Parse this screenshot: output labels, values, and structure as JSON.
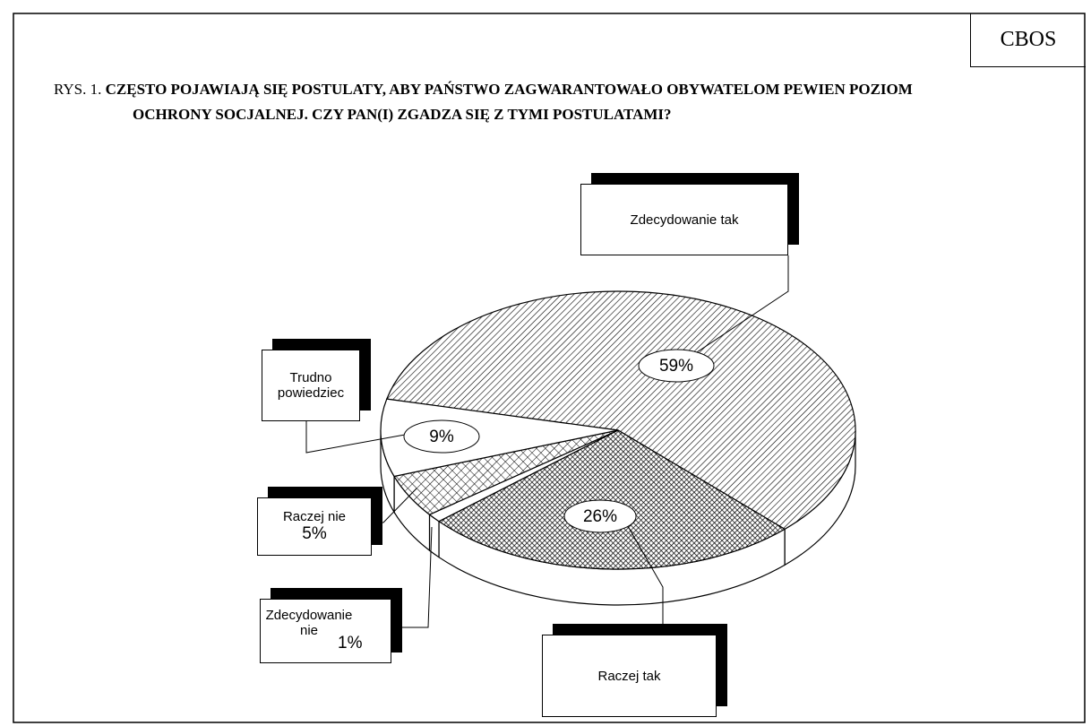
{
  "chart_data": {
    "type": "pie",
    "header": "CBOS",
    "figure_label": "RYS. 1.",
    "title": "CZĘSTO POJAWIAJĄ SIĘ POSTULATY, ABY PAŃSTWO ZAGWARANTOWAŁO OBYWATELOM PEWIEN POZIOM OCHRONY SOCJALNEJ. CZY PAN(I) ZGADZA SIĘ Z TYMI POSTULATAMI?",
    "categories": [
      "Zdecydowanie tak",
      "Raczej tak",
      "Zdecydowanie nie",
      "Raczej nie",
      "Trudno powiedziec"
    ],
    "values": [
      59,
      26,
      1,
      5,
      9
    ],
    "value_labels": [
      "59%",
      "26%",
      "1%",
      "5%",
      "9%"
    ],
    "slice_fills": [
      "hatch",
      "crosshatch-dense",
      "white",
      "crosshatch",
      "white"
    ]
  }
}
